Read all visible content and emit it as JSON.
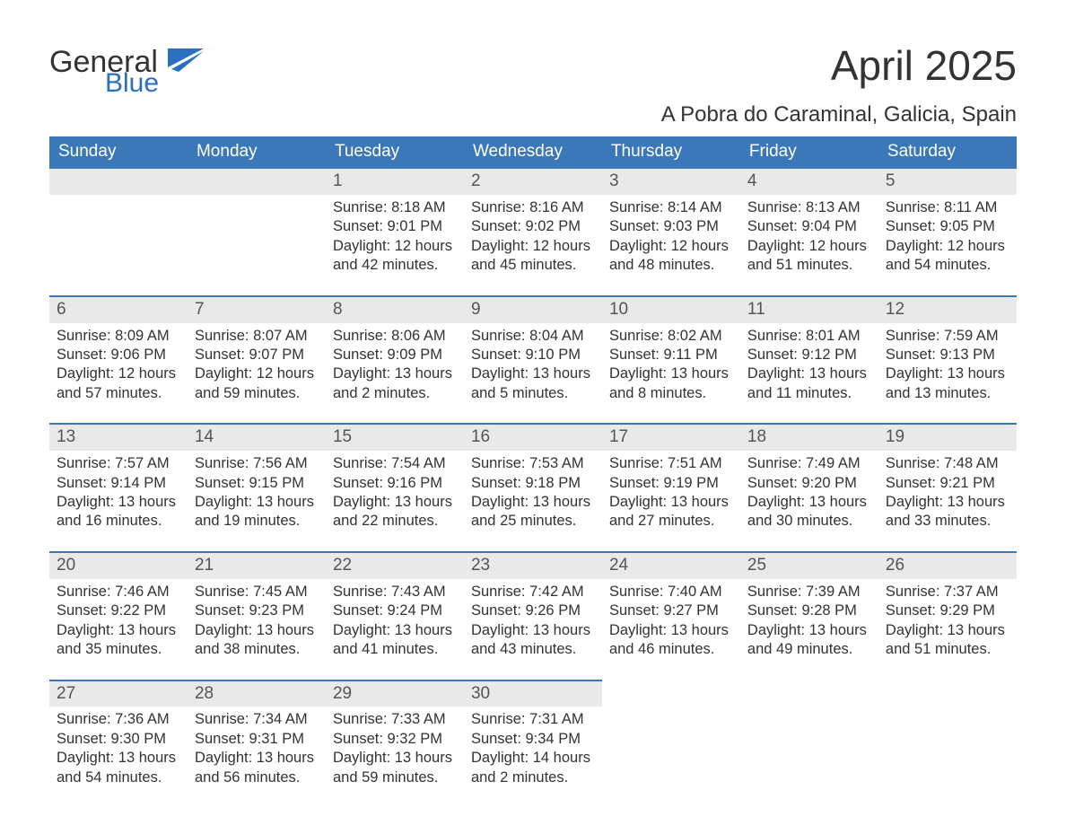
{
  "brand": {
    "word1": "General",
    "word2": "Blue",
    "accent_color": "#2a70bf"
  },
  "title": "April 2025",
  "location": "A Pobra do Caraminal, Galicia, Spain",
  "style": {
    "header_bg": "#3b78b9",
    "header_fg": "#ffffff",
    "daynum_bg": "#e9e9e9",
    "daynum_fg": "#555555",
    "body_fg": "#333333",
    "row_border": "#3b78b9",
    "page_bg": "#ffffff",
    "title_fontsize": 46,
    "location_fontsize": 24,
    "header_fontsize": 19,
    "body_fontsize": 16.5
  },
  "weekday_labels": [
    "Sunday",
    "Monday",
    "Tuesday",
    "Wednesday",
    "Thursday",
    "Friday",
    "Saturday"
  ],
  "weeks": [
    [
      {
        "blank": true
      },
      {
        "blank": true
      },
      {
        "day": "1",
        "sunrise": "Sunrise: 8:18 AM",
        "sunset": "Sunset: 9:01 PM",
        "day1": "Daylight: 12 hours",
        "day2": "and 42 minutes."
      },
      {
        "day": "2",
        "sunrise": "Sunrise: 8:16 AM",
        "sunset": "Sunset: 9:02 PM",
        "day1": "Daylight: 12 hours",
        "day2": "and 45 minutes."
      },
      {
        "day": "3",
        "sunrise": "Sunrise: 8:14 AM",
        "sunset": "Sunset: 9:03 PM",
        "day1": "Daylight: 12 hours",
        "day2": "and 48 minutes."
      },
      {
        "day": "4",
        "sunrise": "Sunrise: 8:13 AM",
        "sunset": "Sunset: 9:04 PM",
        "day1": "Daylight: 12 hours",
        "day2": "and 51 minutes."
      },
      {
        "day": "5",
        "sunrise": "Sunrise: 8:11 AM",
        "sunset": "Sunset: 9:05 PM",
        "day1": "Daylight: 12 hours",
        "day2": "and 54 minutes."
      }
    ],
    [
      {
        "day": "6",
        "sunrise": "Sunrise: 8:09 AM",
        "sunset": "Sunset: 9:06 PM",
        "day1": "Daylight: 12 hours",
        "day2": "and 57 minutes."
      },
      {
        "day": "7",
        "sunrise": "Sunrise: 8:07 AM",
        "sunset": "Sunset: 9:07 PM",
        "day1": "Daylight: 12 hours",
        "day2": "and 59 minutes."
      },
      {
        "day": "8",
        "sunrise": "Sunrise: 8:06 AM",
        "sunset": "Sunset: 9:09 PM",
        "day1": "Daylight: 13 hours",
        "day2": "and 2 minutes."
      },
      {
        "day": "9",
        "sunrise": "Sunrise: 8:04 AM",
        "sunset": "Sunset: 9:10 PM",
        "day1": "Daylight: 13 hours",
        "day2": "and 5 minutes."
      },
      {
        "day": "10",
        "sunrise": "Sunrise: 8:02 AM",
        "sunset": "Sunset: 9:11 PM",
        "day1": "Daylight: 13 hours",
        "day2": "and 8 minutes."
      },
      {
        "day": "11",
        "sunrise": "Sunrise: 8:01 AM",
        "sunset": "Sunset: 9:12 PM",
        "day1": "Daylight: 13 hours",
        "day2": "and 11 minutes."
      },
      {
        "day": "12",
        "sunrise": "Sunrise: 7:59 AM",
        "sunset": "Sunset: 9:13 PM",
        "day1": "Daylight: 13 hours",
        "day2": "and 13 minutes."
      }
    ],
    [
      {
        "day": "13",
        "sunrise": "Sunrise: 7:57 AM",
        "sunset": "Sunset: 9:14 PM",
        "day1": "Daylight: 13 hours",
        "day2": "and 16 minutes."
      },
      {
        "day": "14",
        "sunrise": "Sunrise: 7:56 AM",
        "sunset": "Sunset: 9:15 PM",
        "day1": "Daylight: 13 hours",
        "day2": "and 19 minutes."
      },
      {
        "day": "15",
        "sunrise": "Sunrise: 7:54 AM",
        "sunset": "Sunset: 9:16 PM",
        "day1": "Daylight: 13 hours",
        "day2": "and 22 minutes."
      },
      {
        "day": "16",
        "sunrise": "Sunrise: 7:53 AM",
        "sunset": "Sunset: 9:18 PM",
        "day1": "Daylight: 13 hours",
        "day2": "and 25 minutes."
      },
      {
        "day": "17",
        "sunrise": "Sunrise: 7:51 AM",
        "sunset": "Sunset: 9:19 PM",
        "day1": "Daylight: 13 hours",
        "day2": "and 27 minutes."
      },
      {
        "day": "18",
        "sunrise": "Sunrise: 7:49 AM",
        "sunset": "Sunset: 9:20 PM",
        "day1": "Daylight: 13 hours",
        "day2": "and 30 minutes."
      },
      {
        "day": "19",
        "sunrise": "Sunrise: 7:48 AM",
        "sunset": "Sunset: 9:21 PM",
        "day1": "Daylight: 13 hours",
        "day2": "and 33 minutes."
      }
    ],
    [
      {
        "day": "20",
        "sunrise": "Sunrise: 7:46 AM",
        "sunset": "Sunset: 9:22 PM",
        "day1": "Daylight: 13 hours",
        "day2": "and 35 minutes."
      },
      {
        "day": "21",
        "sunrise": "Sunrise: 7:45 AM",
        "sunset": "Sunset: 9:23 PM",
        "day1": "Daylight: 13 hours",
        "day2": "and 38 minutes."
      },
      {
        "day": "22",
        "sunrise": "Sunrise: 7:43 AM",
        "sunset": "Sunset: 9:24 PM",
        "day1": "Daylight: 13 hours",
        "day2": "and 41 minutes."
      },
      {
        "day": "23",
        "sunrise": "Sunrise: 7:42 AM",
        "sunset": "Sunset: 9:26 PM",
        "day1": "Daylight: 13 hours",
        "day2": "and 43 minutes."
      },
      {
        "day": "24",
        "sunrise": "Sunrise: 7:40 AM",
        "sunset": "Sunset: 9:27 PM",
        "day1": "Daylight: 13 hours",
        "day2": "and 46 minutes."
      },
      {
        "day": "25",
        "sunrise": "Sunrise: 7:39 AM",
        "sunset": "Sunset: 9:28 PM",
        "day1": "Daylight: 13 hours",
        "day2": "and 49 minutes."
      },
      {
        "day": "26",
        "sunrise": "Sunrise: 7:37 AM",
        "sunset": "Sunset: 9:29 PM",
        "day1": "Daylight: 13 hours",
        "day2": "and 51 minutes."
      }
    ],
    [
      {
        "day": "27",
        "sunrise": "Sunrise: 7:36 AM",
        "sunset": "Sunset: 9:30 PM",
        "day1": "Daylight: 13 hours",
        "day2": "and 54 minutes."
      },
      {
        "day": "28",
        "sunrise": "Sunrise: 7:34 AM",
        "sunset": "Sunset: 9:31 PM",
        "day1": "Daylight: 13 hours",
        "day2": "and 56 minutes."
      },
      {
        "day": "29",
        "sunrise": "Sunrise: 7:33 AM",
        "sunset": "Sunset: 9:32 PM",
        "day1": "Daylight: 13 hours",
        "day2": "and 59 minutes."
      },
      {
        "day": "30",
        "sunrise": "Sunrise: 7:31 AM",
        "sunset": "Sunset: 9:34 PM",
        "day1": "Daylight: 14 hours",
        "day2": "and 2 minutes."
      },
      {
        "blank": true
      },
      {
        "blank": true
      },
      {
        "blank": true
      }
    ]
  ]
}
